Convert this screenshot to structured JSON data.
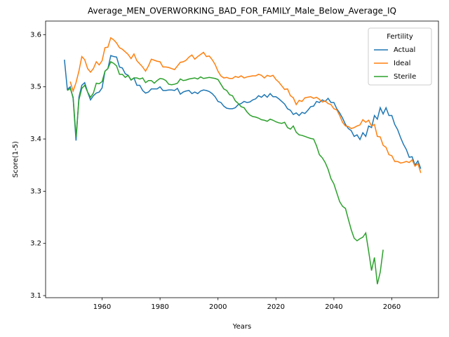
{
  "chart_data": {
    "type": "line",
    "title": "Average_MEN_OVERWORKING_BAD_FOR_FAMILY_Male_Below_Average_IQ",
    "xlabel": "Years",
    "ylabel": "Score(1-5)",
    "legend_title": "Fertility",
    "legend": "upper right",
    "grid": false,
    "xlim": [
      1940.5,
      2076.1
    ],
    "ylim": [
      3.096,
      3.626
    ],
    "xticks": [
      1960,
      1980,
      2000,
      2020,
      2040,
      2060
    ],
    "yticks": [
      3.1,
      3.2,
      3.3,
      3.4,
      3.5,
      3.6
    ],
    "x": [
      1947,
      1948,
      1949,
      1950,
      1951,
      1952,
      1953,
      1954,
      1955,
      1956,
      1957,
      1958,
      1959,
      1960,
      1961,
      1962,
      1963,
      1964,
      1965,
      1966,
      1967,
      1968,
      1969,
      1970,
      1971,
      1972,
      1973,
      1974,
      1975,
      1976,
      1977,
      1978,
      1979,
      1980,
      1981,
      1982,
      1983,
      1984,
      1985,
      1986,
      1987,
      1988,
      1989,
      1990,
      1991,
      1992,
      1993,
      1994,
      1995,
      1996,
      1997,
      1998,
      1999,
      2000,
      2001,
      2002,
      2003,
      2004,
      2005,
      2006,
      2007,
      2008,
      2009,
      2010,
      2011,
      2012,
      2013,
      2014,
      2015,
      2016,
      2017,
      2018,
      2019,
      2020,
      2021,
      2022,
      2023,
      2024,
      2025,
      2026,
      2027,
      2028,
      2029,
      2030,
      2031,
      2032,
      2033,
      2034,
      2035,
      2036,
      2037,
      2038,
      2039,
      2040,
      2041,
      2042,
      2043,
      2044,
      2045,
      2046,
      2047,
      2048,
      2049,
      2050,
      2051,
      2052,
      2053,
      2054,
      2055,
      2056,
      2057,
      2058,
      2059,
      2060,
      2061,
      2062,
      2063,
      2064,
      2065,
      2066,
      2067,
      2068,
      2069,
      2070
    ],
    "series": [
      {
        "name": "Actual",
        "color": "#1f77b4",
        "values": [
          3.552,
          3.495,
          3.5,
          3.478,
          3.397,
          3.48,
          3.503,
          3.508,
          3.49,
          3.475,
          3.483,
          3.488,
          3.49,
          3.498,
          3.53,
          3.535,
          3.56,
          3.558,
          3.557,
          3.538,
          3.536,
          3.525,
          3.522,
          3.513,
          3.517,
          3.503,
          3.503,
          3.493,
          3.488,
          3.49,
          3.496,
          3.496,
          3.496,
          3.5,
          3.493,
          3.493,
          3.494,
          3.494,
          3.493,
          3.497,
          3.486,
          3.49,
          3.492,
          3.493,
          3.487,
          3.49,
          3.487,
          3.492,
          3.494,
          3.493,
          3.491,
          3.487,
          3.481,
          3.472,
          3.47,
          3.463,
          3.459,
          3.458,
          3.458,
          3.46,
          3.466,
          3.468,
          3.472,
          3.47,
          3.471,
          3.475,
          3.477,
          3.483,
          3.48,
          3.485,
          3.48,
          3.487,
          3.481,
          3.481,
          3.477,
          3.472,
          3.467,
          3.458,
          3.455,
          3.447,
          3.45,
          3.445,
          3.451,
          3.449,
          3.455,
          3.462,
          3.463,
          3.472,
          3.47,
          3.475,
          3.472,
          3.478,
          3.47,
          3.47,
          3.458,
          3.45,
          3.44,
          3.428,
          3.42,
          3.416,
          3.405,
          3.408,
          3.399,
          3.412,
          3.405,
          3.425,
          3.422,
          3.445,
          3.438,
          3.46,
          3.448,
          3.46,
          3.445,
          3.445,
          3.428,
          3.418,
          3.403,
          3.39,
          3.38,
          3.365,
          3.366,
          3.35,
          3.358,
          3.343
        ]
      },
      {
        "name": "Ideal",
        "color": "#ff7f0e",
        "values": [
          null,
          null,
          3.51,
          3.492,
          3.508,
          3.53,
          3.558,
          3.552,
          3.535,
          3.528,
          3.535,
          3.548,
          3.542,
          3.55,
          3.575,
          3.576,
          3.594,
          3.59,
          3.584,
          3.575,
          3.572,
          3.567,
          3.562,
          3.554,
          3.563,
          3.55,
          3.544,
          3.538,
          3.53,
          3.54,
          3.553,
          3.551,
          3.549,
          3.548,
          3.538,
          3.538,
          3.537,
          3.535,
          3.533,
          3.54,
          3.547,
          3.548,
          3.551,
          3.557,
          3.561,
          3.553,
          3.558,
          3.562,
          3.566,
          3.558,
          3.559,
          3.552,
          3.543,
          3.53,
          3.521,
          3.517,
          3.518,
          3.516,
          3.516,
          3.52,
          3.518,
          3.521,
          3.517,
          3.519,
          3.52,
          3.521,
          3.521,
          3.524,
          3.522,
          3.517,
          3.522,
          3.52,
          3.522,
          3.514,
          3.509,
          3.502,
          3.495,
          3.496,
          3.483,
          3.479,
          3.466,
          3.474,
          3.472,
          3.479,
          3.48,
          3.481,
          3.478,
          3.48,
          3.476,
          3.471,
          3.473,
          3.468,
          3.466,
          3.458,
          3.456,
          3.445,
          3.432,
          3.425,
          3.424,
          3.42,
          3.422,
          3.425,
          3.427,
          3.437,
          3.432,
          3.436,
          3.425,
          3.428,
          3.405,
          3.404,
          3.388,
          3.384,
          3.37,
          3.368,
          3.357,
          3.357,
          3.354,
          3.355,
          3.357,
          3.355,
          3.36,
          3.348,
          3.353,
          3.335
        ]
      },
      {
        "name": "Sterile",
        "color": "#2ca02c",
        "values": [
          null,
          3.493,
          3.497,
          3.48,
          3.404,
          3.475,
          3.497,
          3.503,
          3.49,
          3.48,
          3.488,
          3.507,
          3.506,
          3.51,
          3.53,
          3.535,
          3.548,
          3.545,
          3.54,
          3.524,
          3.524,
          3.518,
          3.522,
          3.513,
          3.517,
          3.517,
          3.515,
          3.517,
          3.508,
          3.512,
          3.512,
          3.507,
          3.512,
          3.516,
          3.515,
          3.512,
          3.505,
          3.504,
          3.505,
          3.507,
          3.515,
          3.512,
          3.513,
          3.515,
          3.516,
          3.517,
          3.515,
          3.519,
          3.516,
          3.517,
          3.518,
          3.517,
          3.516,
          3.514,
          3.505,
          3.496,
          3.493,
          3.485,
          3.483,
          3.473,
          3.468,
          3.462,
          3.46,
          3.452,
          3.446,
          3.443,
          3.442,
          3.44,
          3.437,
          3.436,
          3.434,
          3.438,
          3.436,
          3.433,
          3.431,
          3.43,
          3.432,
          3.422,
          3.419,
          3.425,
          3.413,
          3.408,
          3.407,
          3.405,
          3.403,
          3.401,
          3.4,
          3.387,
          3.37,
          3.364,
          3.355,
          3.342,
          3.324,
          3.314,
          3.297,
          3.28,
          3.271,
          3.267,
          3.246,
          3.226,
          3.21,
          3.205,
          3.209,
          3.212,
          3.22,
          3.185,
          3.148,
          3.173,
          3.122,
          3.145,
          3.188,
          null,
          null,
          null,
          null,
          null,
          null,
          null,
          null,
          null,
          null,
          null,
          null,
          null
        ]
      }
    ]
  }
}
